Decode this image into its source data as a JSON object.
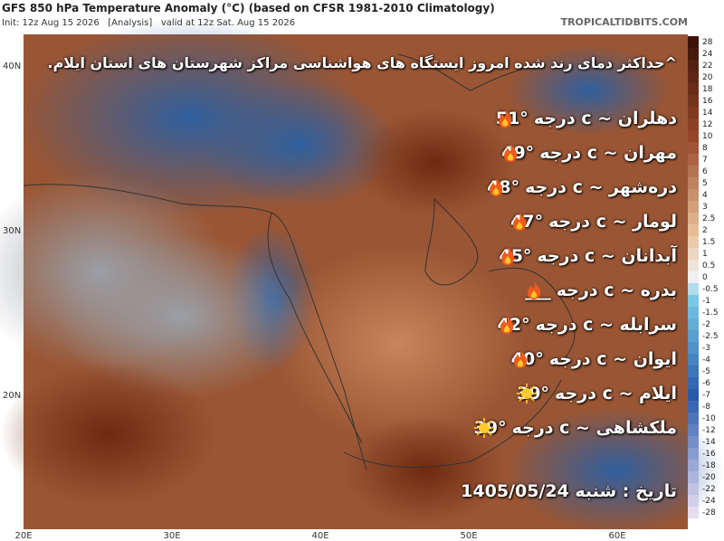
{
  "header": {
    "title": "GFS 850 hPa Temperature Anomaly (°C) (based on CFSR 1981-2010 Climatology)",
    "subtitle": "Init: 12z Aug 15 2026   [Analysis]   valid at 12z Sat. Aug 15 2026",
    "site": "TROPICALTIDBITS.COM"
  },
  "map": {
    "lat_labels": [
      "40N",
      "30N",
      "20N"
    ],
    "lon_labels": [
      "20E",
      "30E",
      "40E",
      "50E",
      "60E"
    ],
    "colorbar": [
      28,
      24,
      22,
      20,
      18,
      16,
      14,
      12,
      10,
      8,
      7,
      6,
      5,
      4,
      3,
      2.5,
      2,
      1.5,
      1,
      0.5,
      0,
      -0.5,
      -1,
      -1.5,
      -2,
      -2.5,
      -3,
      -4,
      -5,
      -6,
      -7,
      -8,
      -10,
      -12,
      -14,
      -16,
      -18,
      -20,
      -22,
      -24,
      -28
    ]
  },
  "overlay": {
    "heading": "^حداکثر دمای رند شده امروز ایستگاه های هواشناسی مراکز شهرستان های استان ایلام.",
    "rows": [
      {
        "temp": "51°",
        "text": "دهلران ~ c درجه"
      },
      {
        "temp": "49°",
        "text": "مهران ~ c درجه"
      },
      {
        "temp": "48°",
        "text": "دره‌شهر ~ c درجه"
      },
      {
        "temp": "47°",
        "text": "لومار ~ c درجه"
      },
      {
        "temp": "45°",
        "text": "آبدانان ~ c درجه"
      },
      {
        "temp": "___",
        "text": "بدره ~ c درجه"
      },
      {
        "temp": "42°",
        "text": "سرابله ~ c درجه"
      },
      {
        "temp": "40°",
        "text": "ایوان ~ c درجه"
      },
      {
        "temp": "39°",
        "text": "ایلام ~ c درجه"
      },
      {
        "temp": "39°",
        "text": "ملکشاهی ~ c درجه"
      }
    ],
    "date": "تاریخ : شنبه 1405/05/24"
  }
}
